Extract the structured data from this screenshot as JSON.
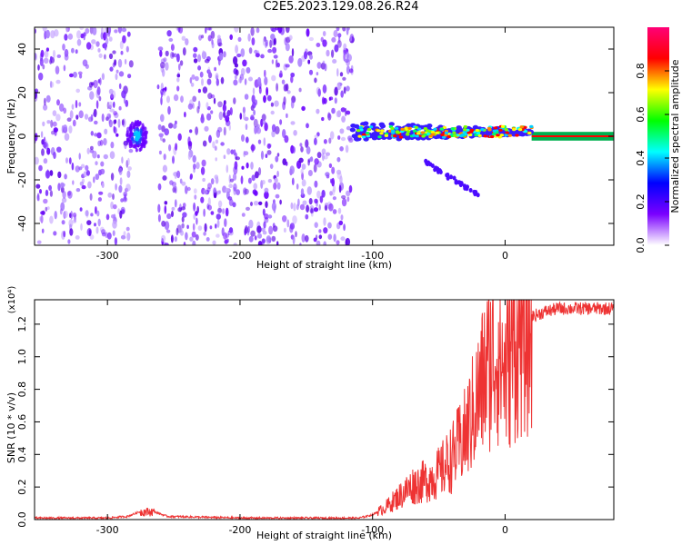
{
  "title": "C2E5.2023.129.08.26.R24",
  "chart_data": [
    {
      "type": "heatmap",
      "xlabel": "Height of straight line (km)",
      "ylabel": "Frequency (Hz)",
      "xlim": [
        -355,
        82
      ],
      "ylim": [
        -50,
        50
      ],
      "xticks": [
        -300,
        -200,
        -100,
        0
      ],
      "yticks": [
        -40,
        -20,
        0,
        20,
        40
      ],
      "colorbar": {
        "label": "Normalized spectral amplitude",
        "range": [
          0,
          1
        ],
        "ticks": [
          "0.0",
          "0.2",
          "0.4",
          "0.6",
          "0.8"
        ],
        "colormap": [
          "#ffffff",
          "#7a00ff",
          "#0000ff",
          "#00ffff",
          "#00ff00",
          "#ffff00",
          "#ff0000",
          "#ff0077"
        ]
      },
      "regions": [
        {
          "name": "noise",
          "x": [
            -355,
            -282
          ],
          "freq": [
            -50,
            50
          ],
          "amplitude": 0.15
        },
        {
          "name": "cluster",
          "x": [
            -285,
            -270
          ],
          "freq": [
            -10,
            10
          ],
          "amplitude": 0.35
        },
        {
          "name": "noise",
          "x": [
            -262,
            -115
          ],
          "freq": [
            -50,
            50
          ],
          "amplitude": 0.15
        },
        {
          "name": "signal-line",
          "x": [
            -115,
            82
          ],
          "freq": [
            -2,
            6
          ],
          "amplitude": 0.8
        },
        {
          "name": "descending-tail",
          "x": [
            -60,
            -20
          ],
          "freq": [
            -27,
            -12
          ],
          "amplitude": 0.2
        }
      ]
    },
    {
      "type": "line",
      "xlabel": "Height of straight line (km)",
      "ylabel": "SNR (10 * v/v)",
      "y_multiplier": "(x10⁴)",
      "xlim": [
        -355,
        82
      ],
      "ylim": [
        0,
        1.35
      ],
      "xticks": [
        -300,
        -200,
        -100,
        0
      ],
      "yticks": [
        0.0,
        0.2,
        0.4,
        0.6,
        0.8,
        1.0,
        1.2
      ],
      "series": [
        {
          "color": "#ee3333",
          "x": [
            -355,
            -300,
            -285,
            -275,
            -265,
            -255,
            -200,
            -150,
            -110,
            -100,
            -90,
            -80,
            -70,
            -60,
            -50,
            -40,
            -30,
            -20,
            -15,
            -10,
            -5,
            0,
            5,
            10,
            20,
            30,
            40,
            50,
            60,
            70,
            82
          ],
          "values": [
            0.01,
            0.01,
            0.02,
            0.05,
            0.05,
            0.02,
            0.01,
            0.01,
            0.01,
            0.03,
            0.08,
            0.15,
            0.22,
            0.25,
            0.3,
            0.4,
            0.55,
            0.8,
            0.95,
            1.05,
            1.1,
            0.95,
            1.1,
            1.2,
            1.25,
            1.28,
            1.3,
            1.3,
            1.3,
            1.3,
            1.3
          ]
        }
      ]
    }
  ]
}
